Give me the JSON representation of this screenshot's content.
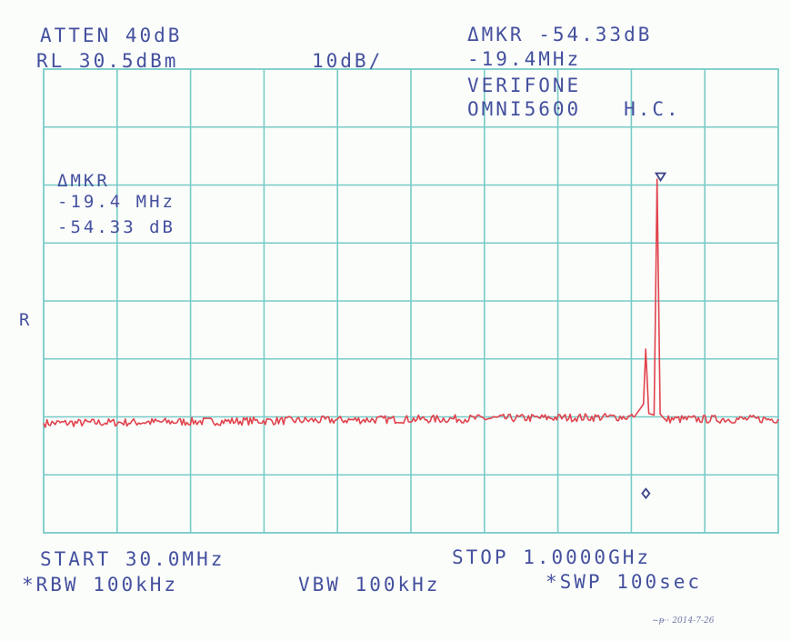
{
  "header": {
    "atten": "ATTEN 40dB",
    "ref_level": "RL 30.5dBm",
    "scale": "10dB/",
    "delta_marker": "ΔMKR -54.33dB",
    "delta_freq": "-19.4MHz",
    "device_line1": "VERIFONE",
    "device_line2": "OMNI5600   H.C."
  },
  "annotation": {
    "title": "ΔMKR",
    "freq": "-19.4 MHz",
    "level": "-54.33 dB"
  },
  "side_label": "R",
  "footer": {
    "start": "START 30.0MHz",
    "stop": "STOP 1.0000GHz",
    "rbw": "*RBW 100kHz",
    "vbw": "VBW 100kHz",
    "sweep": "*SWP 100sec"
  },
  "signature": "2014-7-26",
  "colors": {
    "grid": "#77cbc7",
    "trace": "#e1434d",
    "text": "#44509e",
    "paper": "#fbfdfb"
  },
  "chart_data": {
    "type": "line",
    "title": "",
    "xlabel": "",
    "ylabel": "",
    "x_start_mhz": 30.0,
    "x_stop_mhz": 1000.0,
    "x_divisions": 10,
    "y_divisions": 8,
    "ref_level_dbm": 30.5,
    "db_per_div": 10,
    "ylim_dbm": [
      -49.5,
      30.5
    ],
    "grid": true,
    "noise_floor_dbm": -30.5,
    "series": [
      {
        "points": [
          {
            "x": 30,
            "y": -30.6
          },
          {
            "x": 810,
            "y": -29.5
          },
          {
            "x": 822,
            "y": -27.3
          },
          {
            "x": 825,
            "y": -17.8
          },
          {
            "x": 829,
            "y": -28.9
          },
          {
            "x": 836,
            "y": -29.2
          },
          {
            "x": 840,
            "y": 11.5
          },
          {
            "x": 844,
            "y": -29.0
          },
          {
            "x": 850,
            "y": -29.9
          },
          {
            "x": 1000,
            "y": -29.9
          }
        ]
      }
    ],
    "markers": [
      {
        "kind": "reference",
        "x": 844.6,
        "y": 11.6
      },
      {
        "kind": "delta",
        "x": 825.2,
        "y": -42.7
      }
    ]
  }
}
